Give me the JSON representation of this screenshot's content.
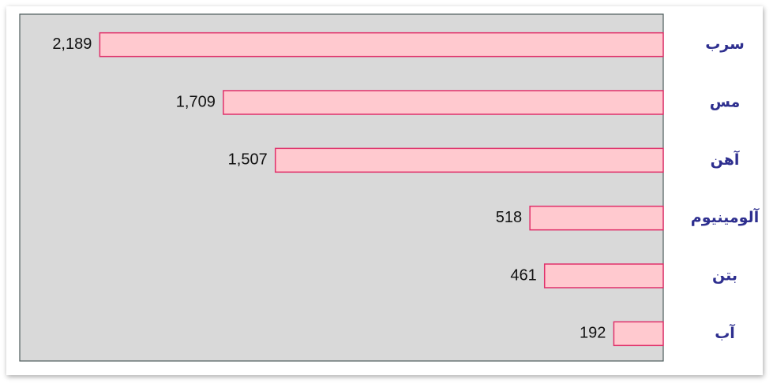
{
  "chart_data": {
    "type": "bar",
    "orientation": "horizontal",
    "x_reversed": true,
    "categories": [
      "سرب",
      "مس",
      "آهن",
      "آلومینیوم",
      "بتن",
      "آب"
    ],
    "values": [
      2189,
      1709,
      1507,
      518,
      461,
      192
    ],
    "value_labels": [
      "2,189",
      "1,709",
      "1,507",
      "518",
      "461",
      "192"
    ],
    "color": "#ffc9cf",
    "edge_color": "#e0306a",
    "background": "#d9d9d9",
    "xlim": [
      0,
      2500
    ]
  }
}
